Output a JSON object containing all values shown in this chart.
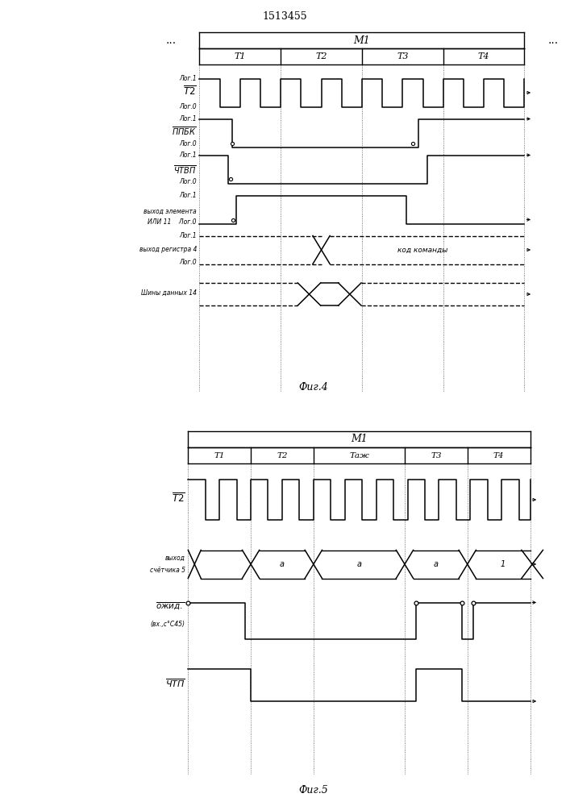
{
  "title": "1513455",
  "fig4_caption": "Фиг.4",
  "fig5_caption": "Фиг.5",
  "bg_color": "#ffffff",
  "line_color": "#000000"
}
